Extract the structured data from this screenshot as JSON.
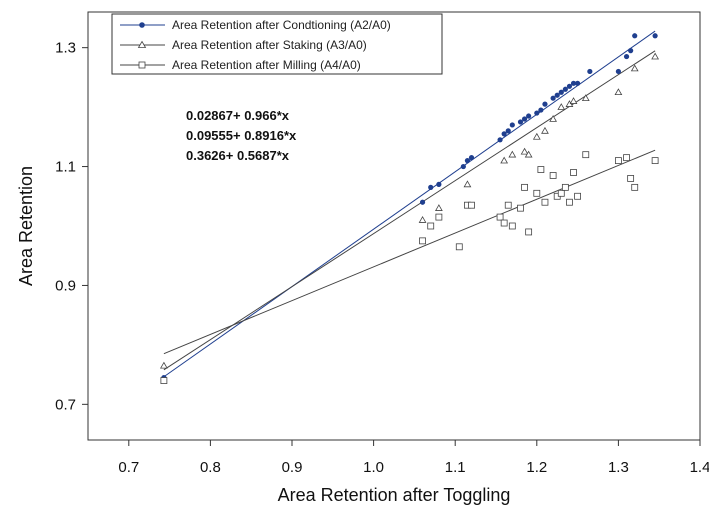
{
  "chart_data": {
    "type": "scatter",
    "xlabel": "Area Retention after Toggling",
    "ylabel": "Area Retention",
    "xlim": [
      0.65,
      1.4
    ],
    "ylim": [
      0.64,
      1.36
    ],
    "x_ticks": [
      "0.7",
      "0.8",
      "0.9",
      "1.0",
      "1.1",
      "1.2",
      "1.3",
      "1.4"
    ],
    "y_ticks": [
      "0.7",
      "0.9",
      "1.1",
      "1.3"
    ],
    "grid": false,
    "legend_position": "top-left",
    "equations": [
      "0.02867+ 0.966*x",
      "0.09555+ 0.8916*x",
      "0.3626+ 0.5687*x"
    ],
    "series": [
      {
        "name": "Area Retention after  Condtioning  (A2/A0)",
        "marker": "filled-circle",
        "color": "#1f3f8f",
        "fit": {
          "intercept": 0.02867,
          "slope": 0.966
        },
        "x": [
          0.743,
          1.06,
          1.07,
          1.08,
          1.11,
          1.115,
          1.12,
          1.155,
          1.16,
          1.165,
          1.17,
          1.18,
          1.185,
          1.19,
          1.2,
          1.205,
          1.21,
          1.22,
          1.225,
          1.23,
          1.235,
          1.24,
          1.245,
          1.25,
          1.265,
          1.3,
          1.31,
          1.315,
          1.32,
          1.345
        ],
        "y": [
          0.745,
          1.04,
          1.065,
          1.07,
          1.1,
          1.11,
          1.115,
          1.145,
          1.155,
          1.16,
          1.17,
          1.175,
          1.18,
          1.185,
          1.19,
          1.195,
          1.205,
          1.215,
          1.22,
          1.225,
          1.23,
          1.235,
          1.24,
          1.24,
          1.26,
          1.26,
          1.285,
          1.295,
          1.32,
          1.32
        ]
      },
      {
        "name": "Area Retention after  Staking  (A3/A0)",
        "marker": "open-triangle",
        "color": "#444444",
        "fit": {
          "intercept": 0.09555,
          "slope": 0.8916
        },
        "x": [
          0.743,
          1.06,
          1.08,
          1.115,
          1.16,
          1.17,
          1.185,
          1.19,
          1.2,
          1.21,
          1.22,
          1.23,
          1.24,
          1.245,
          1.26,
          1.3,
          1.32,
          1.345
        ],
        "y": [
          0.765,
          1.01,
          1.03,
          1.07,
          1.11,
          1.12,
          1.125,
          1.12,
          1.15,
          1.16,
          1.18,
          1.2,
          1.205,
          1.21,
          1.215,
          1.225,
          1.265,
          1.285
        ]
      },
      {
        "name": "Area Retention  after Milling  (A4/A0)",
        "marker": "open-square",
        "color": "#444444",
        "fit": {
          "intercept": 0.3626,
          "slope": 0.5687
        },
        "x": [
          0.743,
          1.06,
          1.07,
          1.08,
          1.105,
          1.115,
          1.12,
          1.155,
          1.16,
          1.165,
          1.17,
          1.18,
          1.185,
          1.19,
          1.2,
          1.205,
          1.21,
          1.22,
          1.225,
          1.23,
          1.235,
          1.24,
          1.245,
          1.25,
          1.26,
          1.3,
          1.31,
          1.315,
          1.32,
          1.345
        ],
        "y": [
          0.74,
          0.975,
          1.0,
          1.015,
          0.965,
          1.035,
          1.035,
          1.015,
          1.005,
          1.035,
          1.0,
          1.03,
          1.065,
          0.99,
          1.055,
          1.095,
          1.04,
          1.085,
          1.05,
          1.055,
          1.065,
          1.04,
          1.09,
          1.05,
          1.12,
          1.11,
          1.115,
          1.08,
          1.065,
          1.11
        ]
      }
    ]
  }
}
